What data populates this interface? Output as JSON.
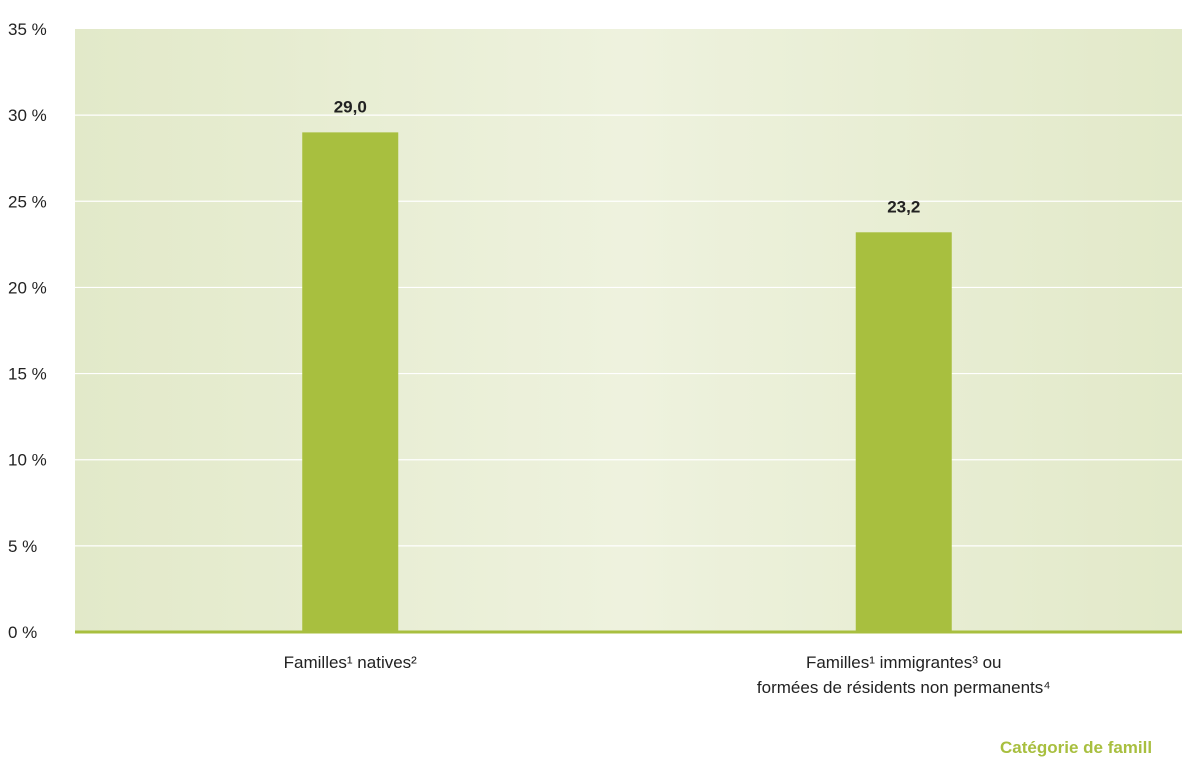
{
  "chart_data": {
    "type": "bar",
    "categories": [
      [
        "Familles¹ natives²"
      ],
      [
        "Familles¹ immigrantes³ ou",
        "formées de résidents non permanents⁴"
      ]
    ],
    "values": [
      29.0,
      23.2
    ],
    "data_labels": [
      "29,0",
      "23,2"
    ],
    "xlabel": "Catégorie de famill",
    "ylabel": "",
    "ylim": [
      0,
      35
    ],
    "yticks": [
      0,
      5,
      10,
      15,
      20,
      25,
      30,
      35
    ],
    "ytick_labels": [
      "0 %",
      "5 %",
      "10 %",
      "15 %",
      "20 %",
      "25 %",
      "30 %",
      "35 %"
    ],
    "grid": true,
    "colors": {
      "bar": "#a8bf3f",
      "axis": "#a8bf3f",
      "plot_bg_edge": "#e2e9c9",
      "plot_bg_center": "#eef2de",
      "gridline": "#ffffff",
      "xlabel": "#a8bf3f"
    }
  }
}
